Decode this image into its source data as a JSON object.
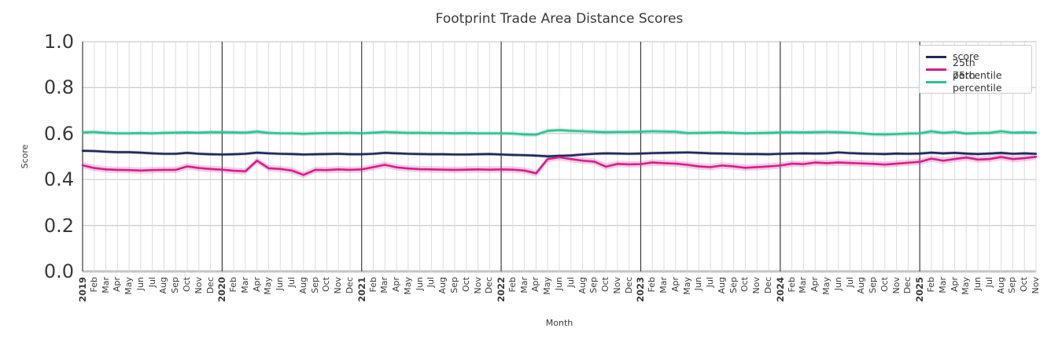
{
  "chart_data": {
    "type": "line",
    "title": "Footprint Trade Area Distance Scores",
    "xlabel": "Month",
    "ylabel": "Score",
    "ylim": [
      0.0,
      1.0
    ],
    "ytick_labels": [
      "0.0",
      "0.2",
      "0.4",
      "0.6",
      "0.8",
      "1.0"
    ],
    "grid": true,
    "legend_position": "upper right",
    "x_tick_labels": [
      "2019",
      "Feb",
      "Mar",
      "Apr",
      "May",
      "Jun",
      "Jul",
      "Aug",
      "Sep",
      "Oct",
      "Nov",
      "Dec",
      "2020",
      "Feb",
      "Mar",
      "Apr",
      "May",
      "Jun",
      "Jul",
      "Aug",
      "Sep",
      "Oct",
      "Nov",
      "Dec",
      "2021",
      "Feb",
      "Mar",
      "Apr",
      "May",
      "Jun",
      "Jul",
      "Aug",
      "Sep",
      "Oct",
      "Nov",
      "Dec",
      "2022",
      "Feb",
      "Mar",
      "Apr",
      "May",
      "Jun",
      "Jul",
      "Aug",
      "Sep",
      "Oct",
      "Nov",
      "Dec",
      "2023",
      "Feb",
      "Mar",
      "Apr",
      "May",
      "Jun",
      "Jul",
      "Aug",
      "Sep",
      "Oct",
      "Nov",
      "Dec",
      "2024",
      "Feb",
      "Mar",
      "Apr",
      "May",
      "Jun",
      "Jul",
      "Aug",
      "Sep",
      "Oct",
      "Nov",
      "Dec",
      "2025",
      "Feb",
      "Mar",
      "Apr",
      "May",
      "Jun",
      "Jul",
      "Aug",
      "Sep",
      "Oct",
      "Nov"
    ],
    "series": [
      {
        "name": "score",
        "color": "#1f2a5a",
        "band_halfwidth": 0.007,
        "values": [
          0.525,
          0.524,
          0.521,
          0.519,
          0.519,
          0.517,
          0.514,
          0.512,
          0.512,
          0.516,
          0.512,
          0.51,
          0.509,
          0.51,
          0.512,
          0.517,
          0.514,
          0.512,
          0.511,
          0.509,
          0.51,
          0.511,
          0.512,
          0.51,
          0.51,
          0.512,
          0.516,
          0.514,
          0.512,
          0.511,
          0.51,
          0.51,
          0.509,
          0.509,
          0.51,
          0.511,
          0.509,
          0.507,
          0.506,
          0.504,
          0.501,
          0.503,
          0.505,
          0.509,
          0.512,
          0.514,
          0.513,
          0.512,
          0.513,
          0.515,
          0.516,
          0.517,
          0.518,
          0.516,
          0.514,
          0.513,
          0.512,
          0.511,
          0.511,
          0.51,
          0.512,
          0.513,
          0.514,
          0.513,
          0.514,
          0.518,
          0.515,
          0.513,
          0.512,
          0.511,
          0.513,
          0.512,
          0.513,
          0.517,
          0.514,
          0.516,
          0.513,
          0.511,
          0.513,
          0.516,
          0.512,
          0.514,
          0.512
        ]
      },
      {
        "name": "25th percentile",
        "color": "#d41f8d",
        "band_halfwidth": 0.014,
        "values": [
          0.462,
          0.45,
          0.444,
          0.442,
          0.441,
          0.439,
          0.441,
          0.442,
          0.442,
          0.457,
          0.45,
          0.446,
          0.443,
          0.438,
          0.436,
          0.482,
          0.449,
          0.446,
          0.439,
          0.42,
          0.442,
          0.441,
          0.444,
          0.442,
          0.444,
          0.454,
          0.464,
          0.453,
          0.448,
          0.445,
          0.444,
          0.443,
          0.442,
          0.443,
          0.444,
          0.443,
          0.444,
          0.443,
          0.439,
          0.427,
          0.489,
          0.497,
          0.489,
          0.482,
          0.478,
          0.456,
          0.468,
          0.466,
          0.467,
          0.474,
          0.471,
          0.469,
          0.464,
          0.457,
          0.454,
          0.461,
          0.457,
          0.451,
          0.454,
          0.457,
          0.461,
          0.469,
          0.467,
          0.474,
          0.471,
          0.474,
          0.472,
          0.47,
          0.468,
          0.465,
          0.469,
          0.473,
          0.477,
          0.491,
          0.482,
          0.489,
          0.496,
          0.487,
          0.489,
          0.498,
          0.489,
          0.493,
          0.499
        ]
      },
      {
        "name": "75th percentile",
        "color": "#2fc193",
        "band_halfwidth": 0.01,
        "values": [
          0.605,
          0.607,
          0.603,
          0.601,
          0.601,
          0.602,
          0.601,
          0.603,
          0.604,
          0.605,
          0.604,
          0.606,
          0.606,
          0.605,
          0.604,
          0.609,
          0.603,
          0.601,
          0.601,
          0.599,
          0.601,
          0.602,
          0.602,
          0.603,
          0.601,
          0.604,
          0.607,
          0.605,
          0.603,
          0.603,
          0.602,
          0.602,
          0.601,
          0.602,
          0.601,
          0.601,
          0.601,
          0.6,
          0.596,
          0.595,
          0.612,
          0.615,
          0.612,
          0.61,
          0.608,
          0.606,
          0.607,
          0.607,
          0.608,
          0.61,
          0.609,
          0.608,
          0.602,
          0.603,
          0.604,
          0.605,
          0.603,
          0.601,
          0.602,
          0.603,
          0.605,
          0.606,
          0.605,
          0.606,
          0.607,
          0.606,
          0.604,
          0.601,
          0.597,
          0.596,
          0.598,
          0.6,
          0.601,
          0.61,
          0.603,
          0.607,
          0.6,
          0.602,
          0.603,
          0.61,
          0.604,
          0.605,
          0.604
        ]
      }
    ],
    "style": {
      "grid_color_minor": "#dcdcdc",
      "grid_color_major": "#cccccc",
      "year_line_color": "#3d3d3d",
      "baseline_color": "#c4c4c4",
      "band_opacity": 0.22
    }
  }
}
